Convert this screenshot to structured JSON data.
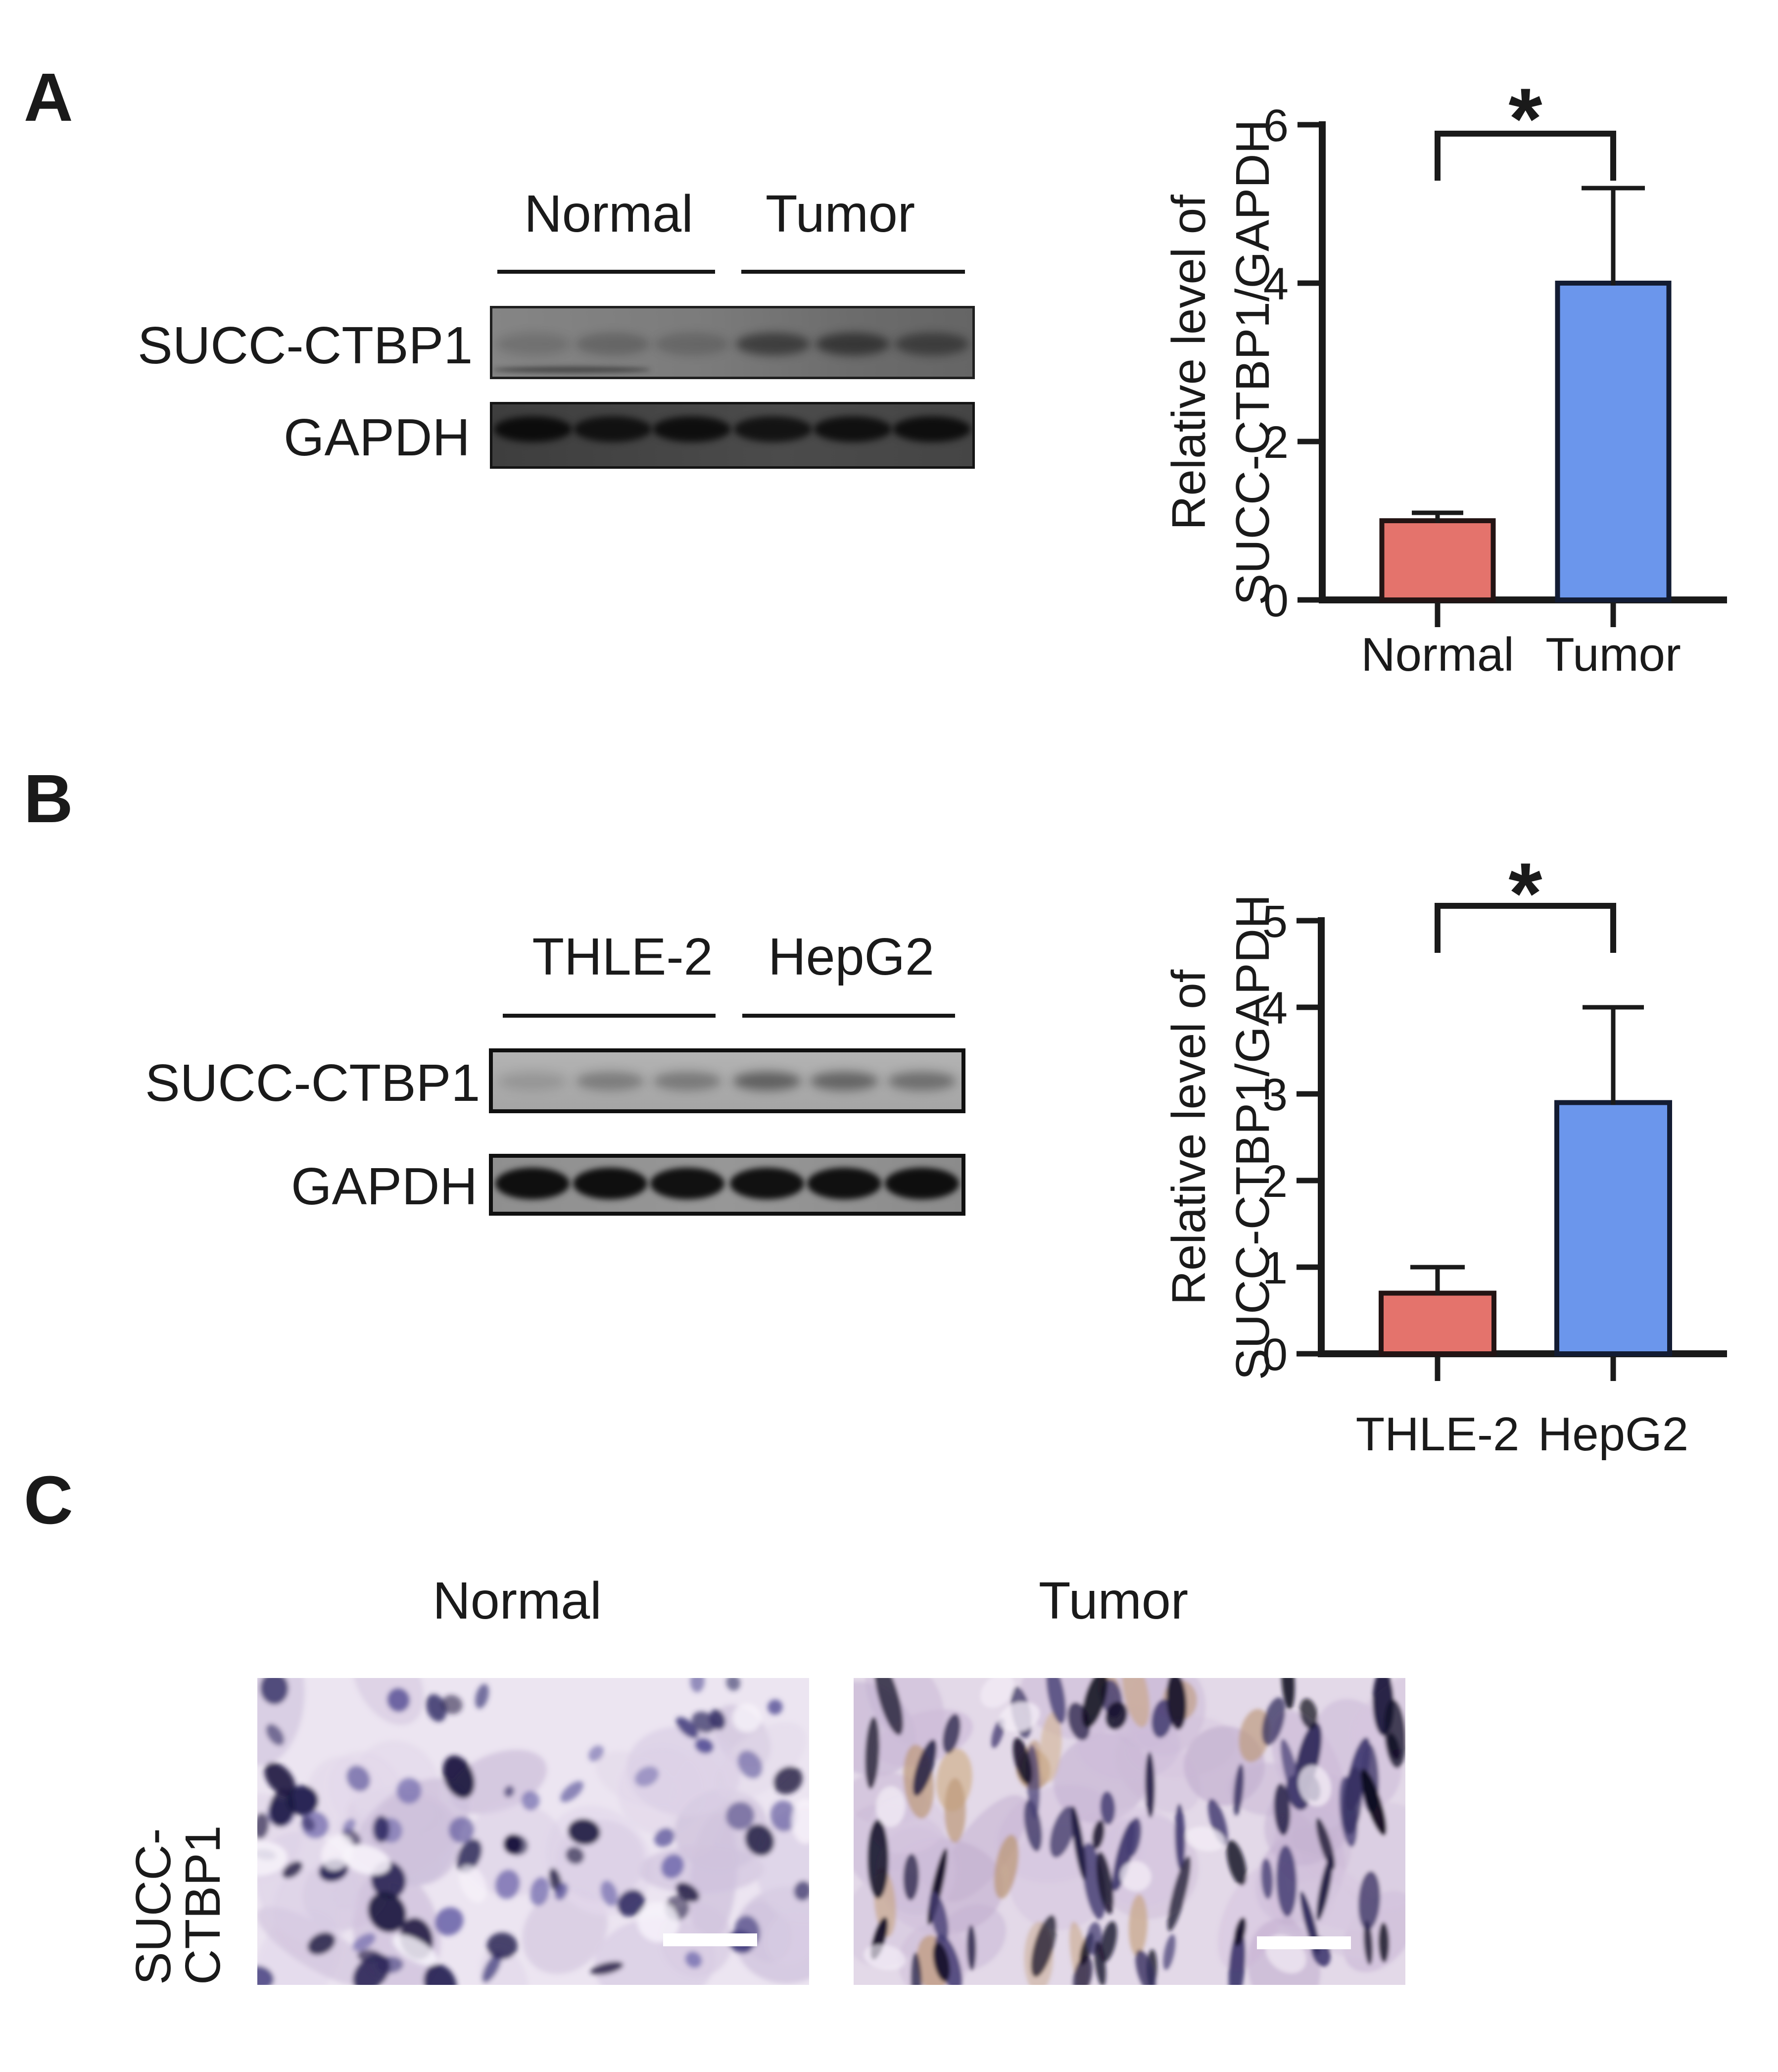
{
  "accent_colors": {
    "bar_red": "#E4736C",
    "bar_blue": "#6B96EC",
    "ink": "#1a1a1a"
  },
  "panels": {
    "a": {
      "label": "A",
      "blot": {
        "group_labels": [
          "Normal",
          "Tumor"
        ],
        "row_labels": [
          "SUCC-CTBP1",
          "GAPDH"
        ],
        "lanes_per_group": 3,
        "band_intensities": {
          "succ_ctbp1": [
            0.18,
            0.26,
            0.22,
            0.62,
            0.68,
            0.58
          ],
          "gapdh": [
            0.95,
            0.88,
            0.92,
            0.86,
            0.9,
            0.93
          ]
        }
      }
    },
    "b": {
      "label": "B",
      "blot": {
        "group_labels": [
          "THLE-2",
          "HepG2"
        ],
        "row_labels": [
          "SUCC-CTBP1",
          "GAPDH"
        ],
        "lanes_per_group": 3,
        "band_intensities": {
          "succ_ctbp1": [
            0.15,
            0.34,
            0.36,
            0.55,
            0.52,
            0.45
          ],
          "gapdh": [
            0.97,
            0.97,
            0.95,
            0.95,
            0.96,
            0.97
          ]
        }
      }
    },
    "c": {
      "label": "C",
      "column_labels": [
        "Normal",
        "Tumor"
      ],
      "row_label": "SUCC-CTBP1",
      "scale_bar_color": "#ffffff"
    }
  },
  "chart_data": [
    {
      "id": "panel-a-chart",
      "type": "bar",
      "categories": [
        "Normal",
        "Tumor"
      ],
      "values": [
        1.0,
        4.0
      ],
      "errors": [
        0.1,
        1.2
      ],
      "title": "",
      "xlabel": "",
      "ylabel": "Relative level of SUCC-CTBP1/GAPDH",
      "ylabel_lines": [
        "Relative level of",
        "SUCC-CTBP1/GAPDH"
      ],
      "yticks": [
        0,
        2,
        4,
        6
      ],
      "ylim": [
        0,
        6
      ],
      "bar_colors": [
        "#E4736C",
        "#6B96EC"
      ],
      "significance": "*",
      "grid": false,
      "legend_position": "none"
    },
    {
      "id": "panel-b-chart",
      "type": "bar",
      "categories": [
        "THLE-2",
        "HepG2"
      ],
      "values": [
        0.7,
        2.9
      ],
      "errors": [
        0.3,
        1.1
      ],
      "title": "",
      "xlabel": "",
      "ylabel": "Relative level of SUCC-CTBP1/GAPDH",
      "ylabel_lines": [
        "Relative level of",
        "SUCC-CTBP1/GAPDH"
      ],
      "yticks": [
        0,
        1,
        2,
        3,
        4,
        5
      ],
      "ylim": [
        0,
        5
      ],
      "bar_colors": [
        "#E4736C",
        "#6B96EC"
      ],
      "significance": "*",
      "grid": false,
      "legend_position": "none"
    }
  ]
}
